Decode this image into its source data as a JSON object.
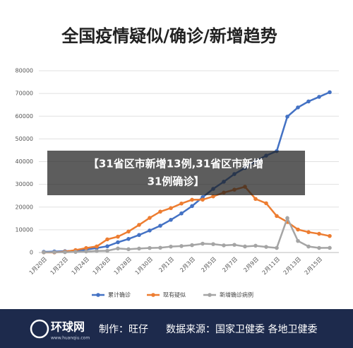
{
  "chart_data": {
    "type": "line",
    "title": "全国疫情疑似/确诊/新增趋势",
    "categories": [
      "1月20日",
      null,
      "1月22日",
      null,
      "1月24日",
      null,
      "1月26日",
      null,
      "1月28日",
      null,
      "1月30日",
      null,
      "2月1日",
      null,
      "2月3日",
      null,
      "2月5日",
      null,
      "2月7日",
      null,
      "2月9日",
      null,
      "2月11日",
      null,
      "2月13日",
      null,
      "2月15日",
      null
    ],
    "series": [
      {
        "name": "累计确诊",
        "color": "#4472c4",
        "values": [
          291,
          440,
          571,
          830,
          1287,
          1975,
          2744,
          4515,
          5974,
          7711,
          9692,
          11791,
          14380,
          17205,
          20438,
          24324,
          28018,
          31161,
          34546,
          37198,
          40171,
          42638,
          44653,
          59804,
          63851,
          66492,
          68500,
          70548
        ]
      },
      {
        "name": "现有疑似",
        "color": "#ed7d31",
        "values": [
          54,
          37,
          393,
          1072,
          1965,
          2684,
          5794,
          6973,
          9239,
          12167,
          15238,
          17988,
          19544,
          21558,
          23214,
          23260,
          24702,
          26359,
          27657,
          28942,
          23589,
          21675,
          16067,
          13435,
          10109,
          8969,
          8228,
          7264
        ]
      },
      {
        "name": "新增确诊病例",
        "color": "#a5a5a5",
        "values": [
          77,
          149,
          131,
          259,
          444,
          688,
          769,
          1771,
          1459,
          1737,
          1982,
          2102,
          2590,
          2829,
          3235,
          3887,
          3694,
          3143,
          3385,
          2652,
          2973,
          2467,
          2015,
          15152,
          5090,
          2641,
          2009,
          2048
        ]
      }
    ],
    "ylim": [
      0,
      80000
    ],
    "yticks": [
      0,
      10000,
      20000,
      30000,
      40000,
      50000,
      60000,
      70000,
      80000
    ],
    "grid": true,
    "legend": "bottom"
  },
  "overlay_caption": [
    "【31省区市新增13例,31省区市新增",
    "31例确诊】"
  ],
  "footer": {
    "logo": "环球网",
    "logo_url": "www.huanqiu.com",
    "author": "制作：旺仔",
    "source": "数据来源：国家卫健委 各地卫健委"
  }
}
